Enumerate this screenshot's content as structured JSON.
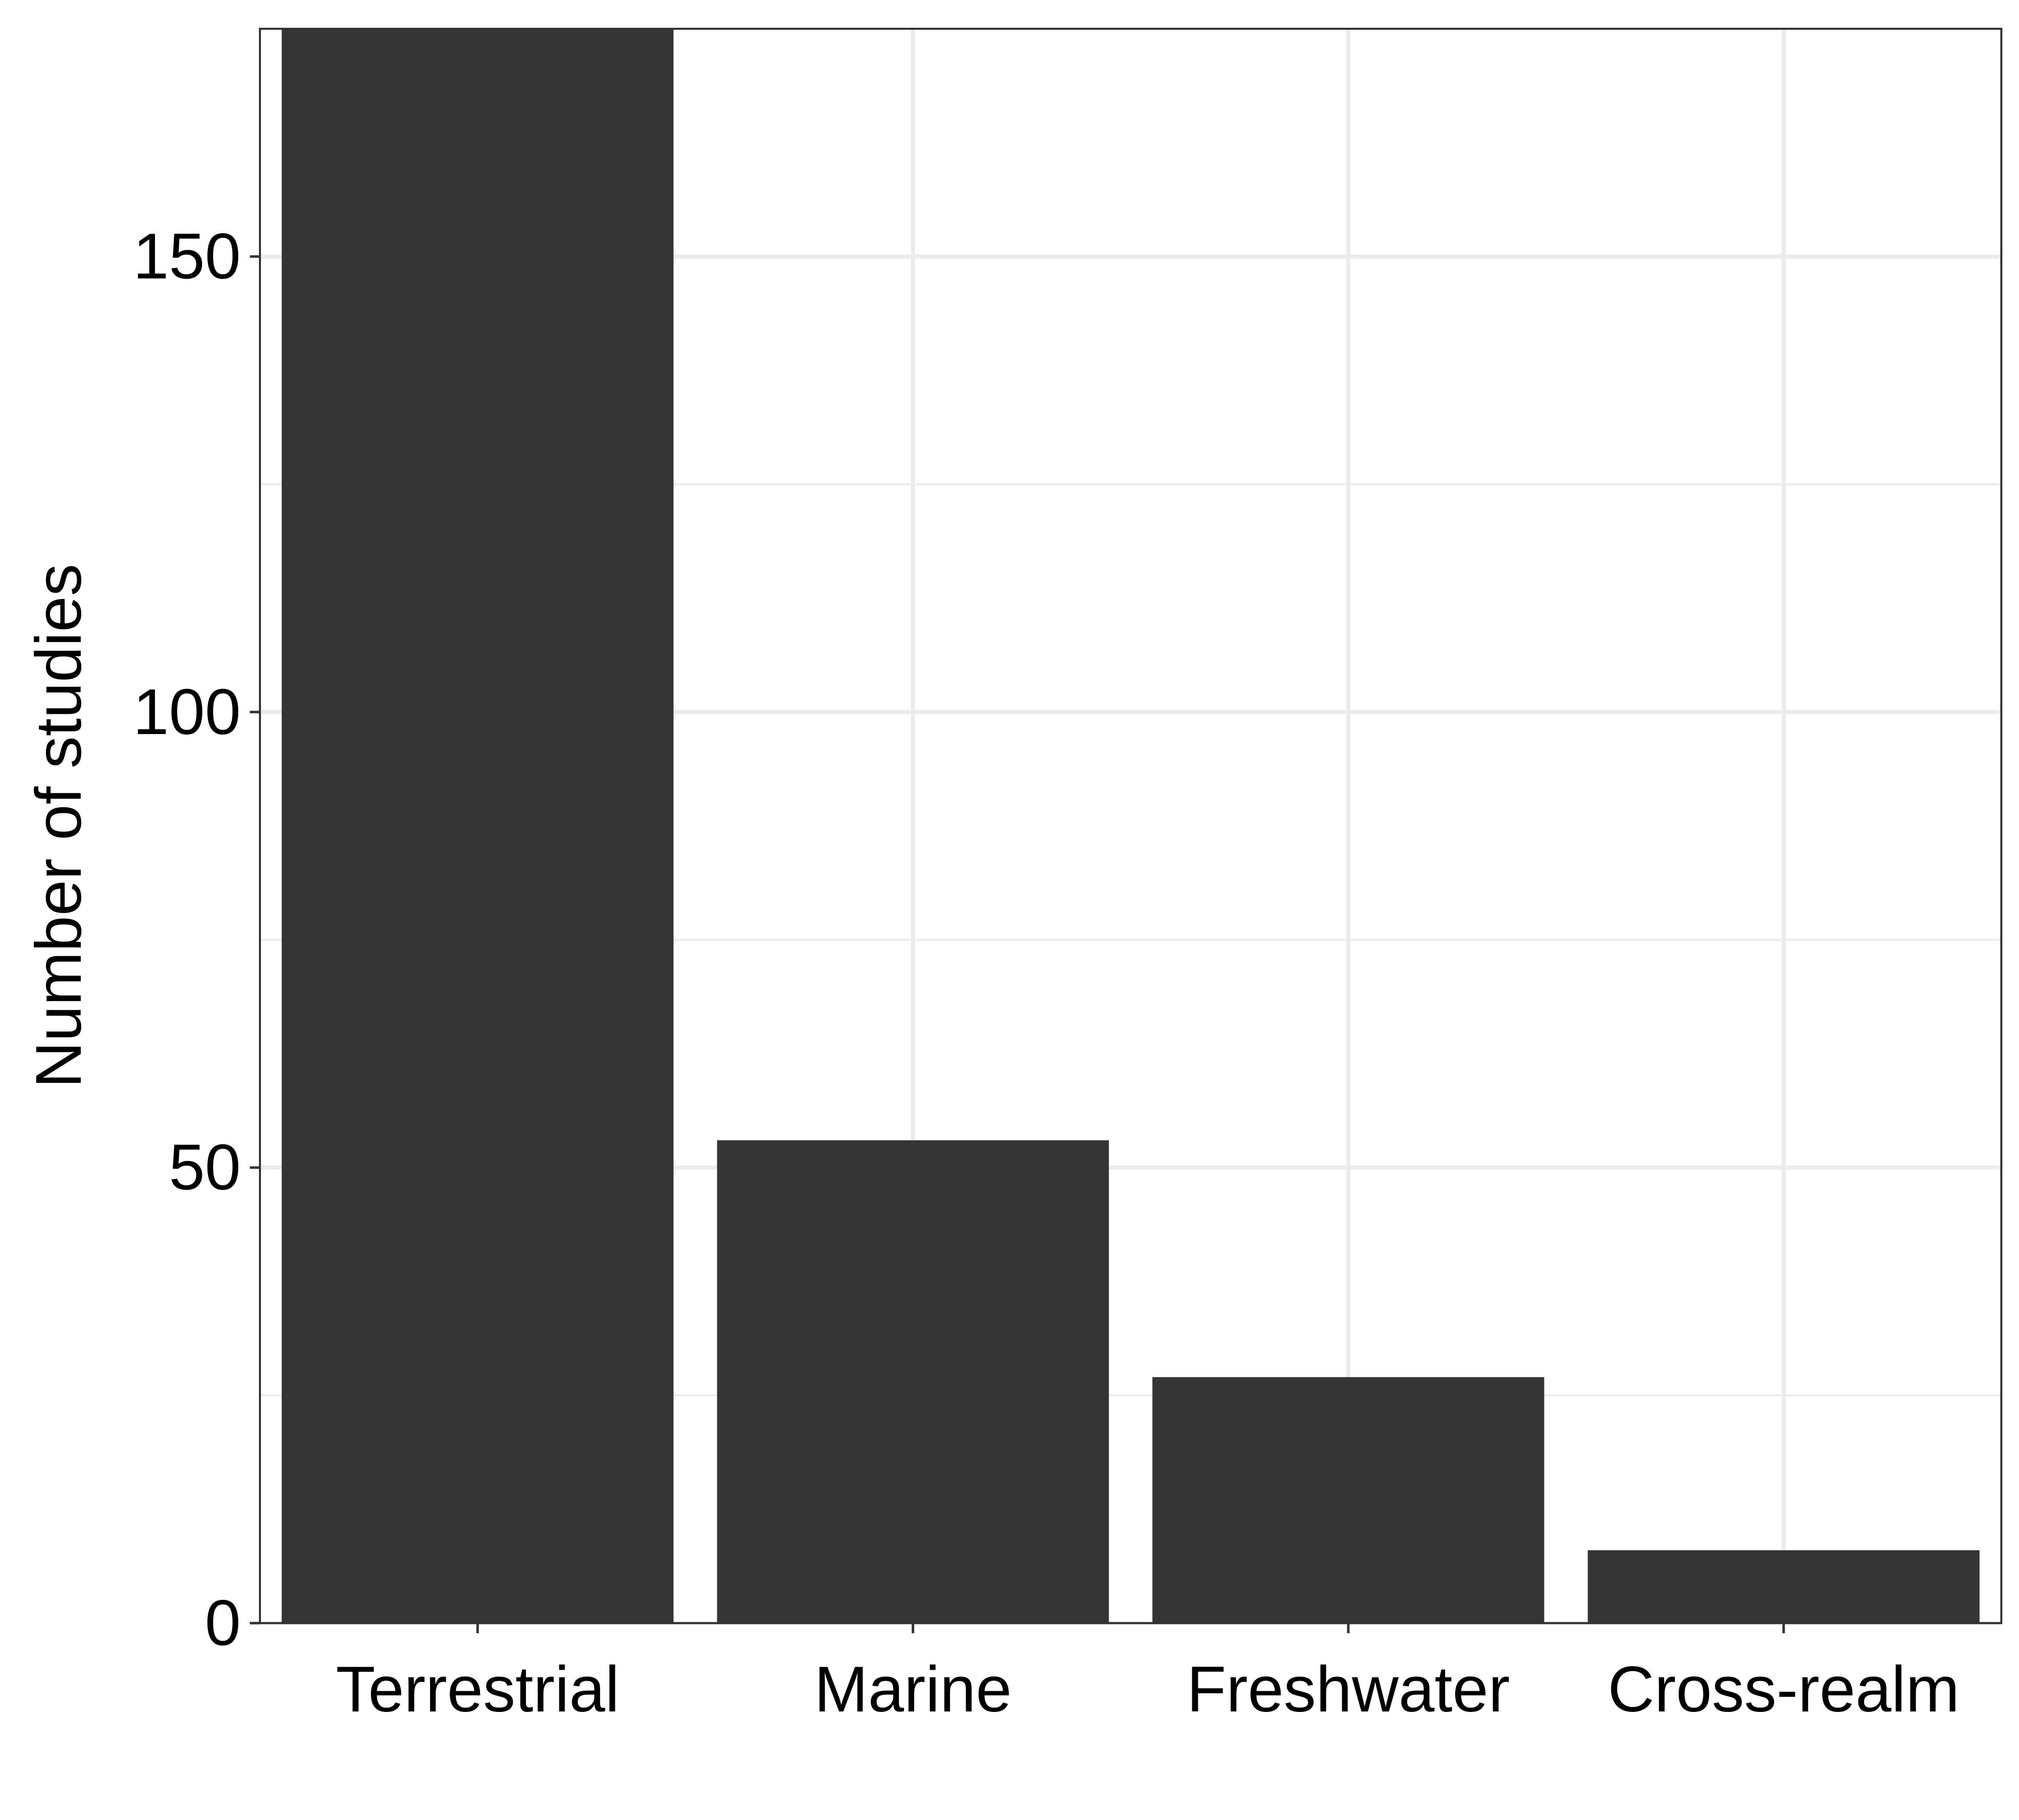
{
  "chart_data": {
    "type": "bar",
    "title": "",
    "xlabel": "",
    "ylabel": "Number of studies",
    "categories": [
      "Terrestrial",
      "Marine",
      "Freshwater",
      "Cross-realm"
    ],
    "values": [
      176,
      53,
      27,
      8
    ],
    "ylim": [
      0,
      175
    ],
    "yticks": [
      0,
      50,
      100,
      150
    ],
    "grid": true,
    "legend": "none",
    "colors": {
      "bar": "#353535",
      "grid": "#ebebeb",
      "panel_border": "#333333",
      "background": "#ffffff"
    }
  }
}
